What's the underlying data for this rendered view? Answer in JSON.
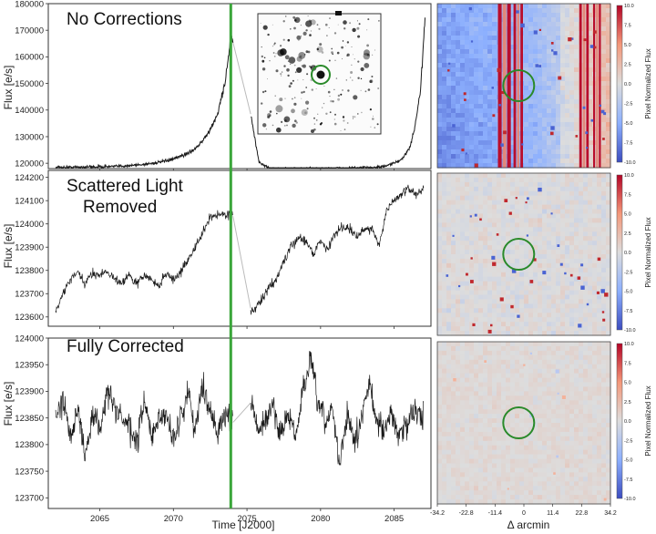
{
  "chart_data": [
    {
      "type": "line",
      "title": "No Corrections",
      "ylabel": "Flux [e/s]",
      "xlim": [
        2061.5,
        2087.5
      ],
      "ylim": [
        118000,
        180000
      ],
      "yticks": [
        120000,
        130000,
        140000,
        150000,
        160000,
        170000,
        180000
      ],
      "ytick_labels": [
        "120000",
        "130000",
        "140000",
        "150000",
        "160000",
        "170000",
        "180000"
      ],
      "series": [
        {
          "x": [
            2062,
            2063,
            2064,
            2065,
            2066,
            2067,
            2068,
            2069,
            2070,
            2071,
            2071.5,
            2072,
            2072.5,
            2073,
            2073.5,
            2073.9,
            2074.3,
            2074.8,
            2075.3,
            2075.8,
            2076.5,
            2077,
            2078,
            2079,
            2080,
            2081,
            2082,
            2083,
            2084,
            2084.5,
            2085,
            2085.5,
            2086,
            2086.4,
            2086.8,
            2087.1
          ],
          "y": [
            118500,
            118500,
            118600,
            118700,
            118800,
            119100,
            119600,
            120300,
            121500,
            123800,
            125600,
            128500,
            132500,
            138500,
            150000,
            167000,
            163000,
            152000,
            137000,
            120500,
            118200,
            118000,
            118000,
            118000,
            118000,
            118100,
            118200,
            118300,
            118600,
            119000,
            120000,
            121500,
            125000,
            133000,
            148000,
            175000
          ]
        }
      ],
      "annotations": [
        "inset: stellar field image with target circled"
      ]
    },
    {
      "type": "line",
      "title": "Scattered Light\nRemoved",
      "ylabel": "Flux [e/s]",
      "xlim": [
        2061.5,
        2087.5
      ],
      "ylim": [
        123560,
        124230
      ],
      "yticks": [
        123600,
        123700,
        123800,
        123900,
        124000,
        124100,
        124200
      ],
      "ytick_labels": [
        "123600",
        "123700",
        "123800",
        "123900",
        "124000",
        "124100",
        "124200"
      ],
      "series": [
        {
          "x": [
            2062,
            2062.5,
            2063,
            2063.5,
            2064,
            2064.5,
            2065,
            2065.5,
            2066,
            2066.5,
            2067,
            2067.5,
            2068,
            2068.5,
            2069,
            2069.5,
            2070,
            2070.5,
            2071,
            2071.5,
            2072,
            2072.5,
            2073,
            2073.5,
            2074,
            2075.3,
            2075.6,
            2076,
            2076.5,
            2077,
            2077.5,
            2078,
            2078.5,
            2079,
            2079.5,
            2080,
            2080.5,
            2081,
            2081.5,
            2082,
            2082.5,
            2083,
            2083.5,
            2084,
            2084.5,
            2085,
            2085.5,
            2086,
            2086.5,
            2087
          ],
          "y": [
            123620,
            123700,
            123760,
            123790,
            123740,
            123790,
            123780,
            123800,
            123760,
            123750,
            123780,
            123740,
            123780,
            123760,
            123730,
            123790,
            123760,
            123790,
            123850,
            123900,
            123960,
            124030,
            124040,
            124040,
            124050,
            123620,
            123640,
            123670,
            123730,
            123760,
            123840,
            123900,
            123940,
            123930,
            123870,
            123930,
            123890,
            123960,
            123990,
            123980,
            123940,
            123980,
            123980,
            123910,
            124060,
            124100,
            124130,
            124150,
            124130,
            124150
          ]
        }
      ]
    },
    {
      "type": "line",
      "title": "Fully Corrected",
      "ylabel": "Flux [e/s]",
      "xlabel": "Time [J2000]",
      "xlim": [
        2061.5,
        2087.5
      ],
      "ylim": [
        123680,
        124000
      ],
      "yticks": [
        123700,
        123750,
        123800,
        123850,
        123900,
        123950,
        124000
      ],
      "ytick_labels": [
        "123700",
        "123750",
        "123800",
        "123850",
        "123900",
        "123950",
        "124000"
      ],
      "xticks": [
        2065,
        2070,
        2075,
        2080,
        2085
      ],
      "xtick_labels": [
        "2065",
        "2070",
        "2075",
        "2080",
        "2085"
      ],
      "series": [
        {
          "x": [
            2062,
            2062.5,
            2063,
            2063.5,
            2064,
            2064.5,
            2065,
            2065.5,
            2066,
            2066.5,
            2067,
            2067.5,
            2068,
            2068.5,
            2069,
            2069.5,
            2070,
            2070.5,
            2071,
            2071.5,
            2072,
            2072.5,
            2073,
            2073.5,
            2074,
            2075.3,
            2075.8,
            2076.3,
            2076.8,
            2077.3,
            2077.8,
            2078.3,
            2078.8,
            2079.3,
            2079.8,
            2080.3,
            2080.8,
            2081.3,
            2081.8,
            2082.3,
            2082.8,
            2083.3,
            2083.8,
            2084.3,
            2084.8,
            2085.3,
            2085.8,
            2086.3,
            2087
          ],
          "y": [
            123840,
            123890,
            123820,
            123870,
            123770,
            123860,
            123830,
            123900,
            123870,
            123850,
            123830,
            123800,
            123880,
            123820,
            123840,
            123860,
            123810,
            123850,
            123900,
            123830,
            123910,
            123870,
            123820,
            123860,
            123840,
            123880,
            123820,
            123850,
            123870,
            123820,
            123860,
            123810,
            123900,
            123960,
            123880,
            123840,
            123870,
            123760,
            123860,
            123800,
            123850,
            123920,
            123850,
            123820,
            123860,
            123820,
            123830,
            123870,
            123850
          ]
        }
      ]
    },
    {
      "type": "heatmap",
      "colorbar_label": "Pixel Normalized Flux",
      "colorbar_ticks": [
        "10.0",
        "7.5",
        "5.0",
        "2.5",
        "0.0",
        "-2.5",
        "-5.0",
        "-7.5",
        "-10.0"
      ],
      "colorscale": "coolwarm",
      "description": "uncorrected pixel frame with bright vertical columns"
    },
    {
      "type": "heatmap",
      "colorbar_label": "Pixel Normalized Flux",
      "colorbar_ticks": [
        "10.0",
        "7.5",
        "5.0",
        "2.5",
        "0.0",
        "-2.5",
        "-5.0",
        "-7.5",
        "-10.0"
      ],
      "colorscale": "coolwarm",
      "description": "scattered light removed pixel frame"
    },
    {
      "type": "heatmap",
      "colorbar_label": "Pixel Normalized Flux",
      "colorbar_ticks": [
        "10.0",
        "7.5",
        "5.0",
        "2.5",
        "0.0",
        "-2.5",
        "-5.0",
        "-7.5",
        "-10.0"
      ],
      "colorscale": "coolwarm",
      "xlabel": "Δ arcmin",
      "xtick_labels": [
        "-34.2",
        "-22.8",
        "-11.4",
        "0",
        "11.4",
        "22.8",
        "34.2"
      ],
      "description": "fully corrected pixel frame"
    }
  ],
  "colors": {
    "line": "#1a1a1a",
    "gap": "#bbbbbb",
    "vline": "#3aa63a",
    "circle": "#2a8a2a"
  }
}
